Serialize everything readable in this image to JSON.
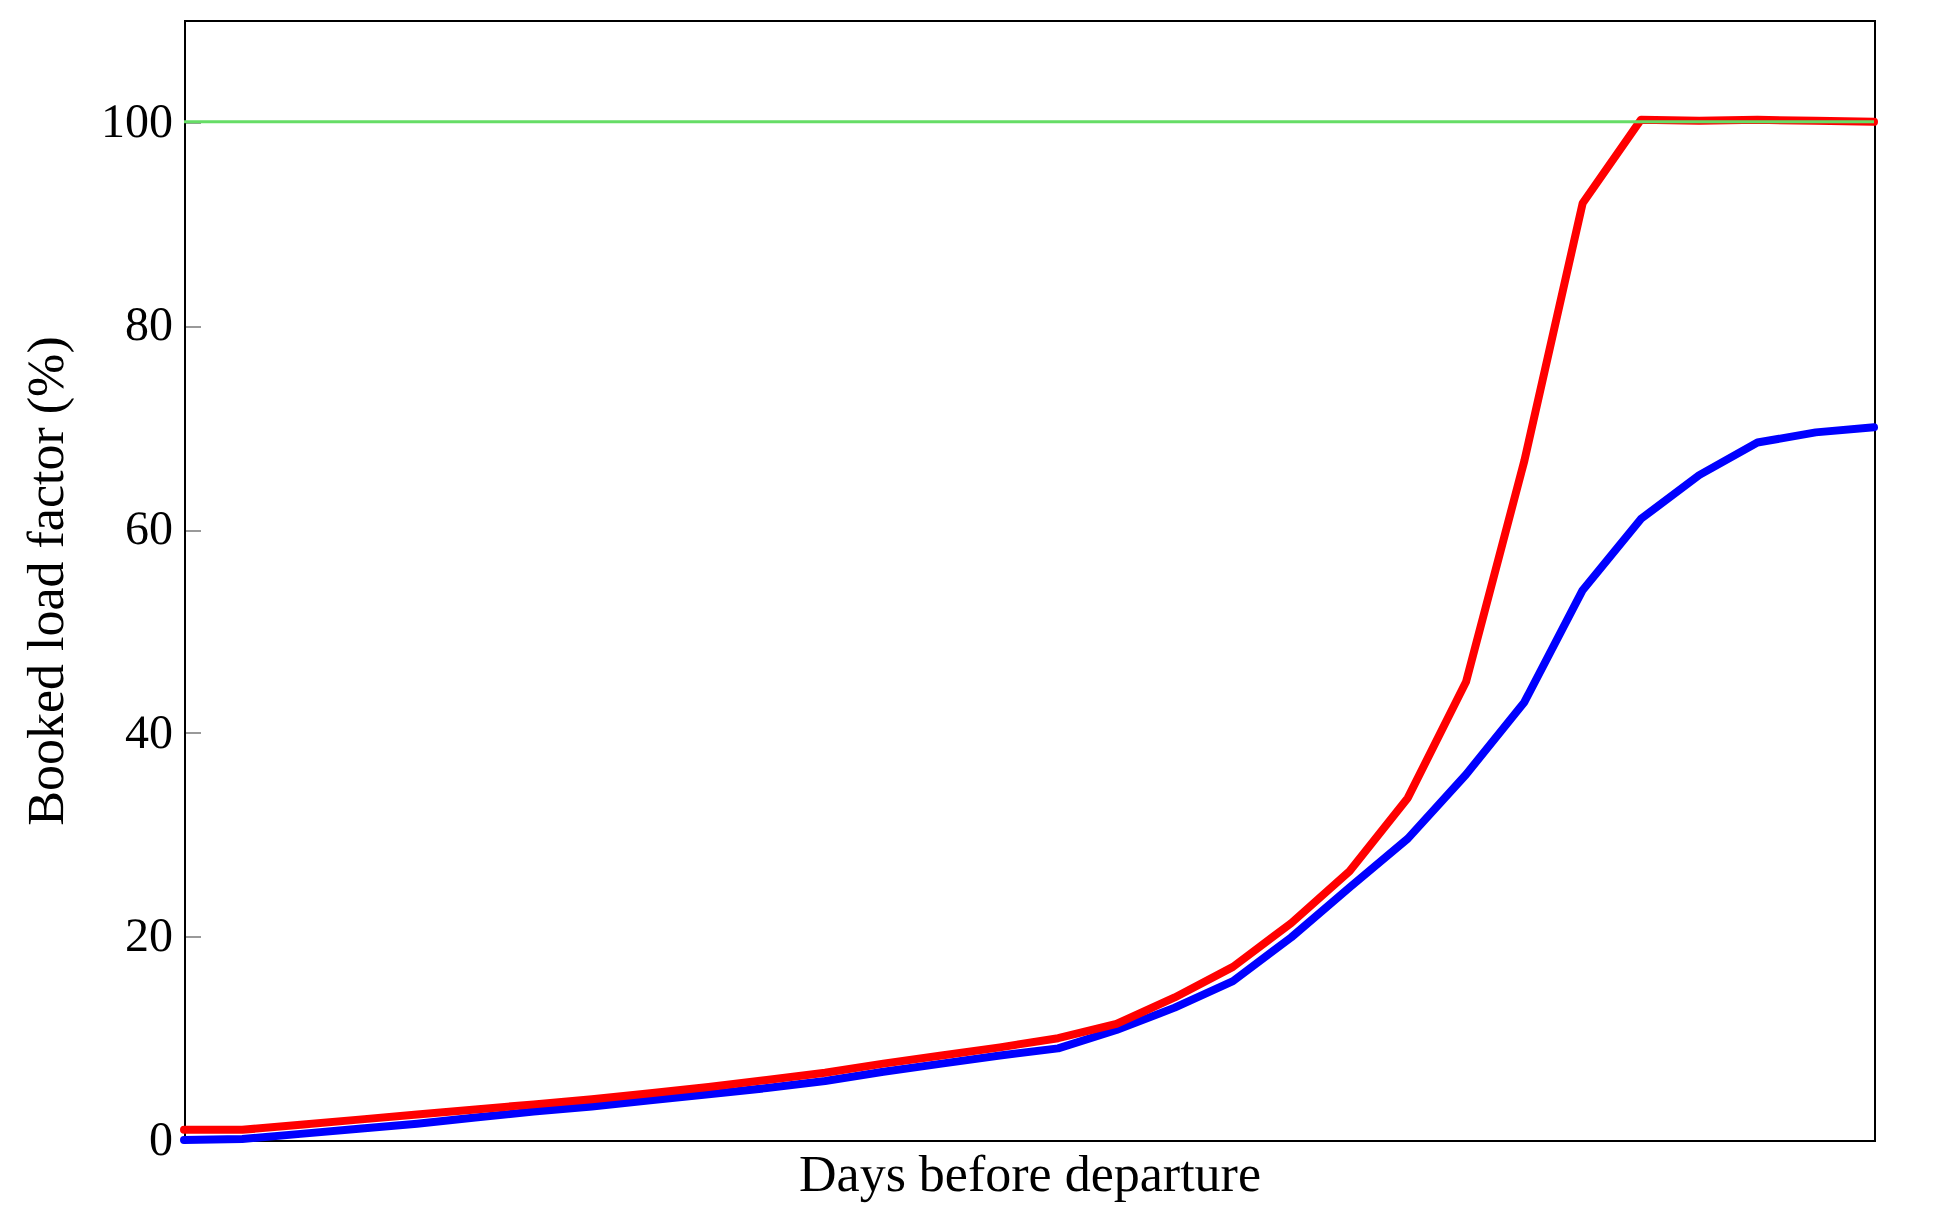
{
  "chart_data": {
    "type": "line",
    "xlabel": "Days before departure",
    "ylabel": "Booked load factor (%)",
    "categories": [
      null,
      null,
      null,
      null,
      null,
      null,
      null,
      null,
      null,
      null,
      null,
      null,
      null,
      null,
      null,
      null,
      null,
      null,
      null,
      null,
      null,
      null,
      null,
      null,
      null,
      null,
      null,
      null,
      null,
      null
    ],
    "series": [
      {
        "color": "#0000ff",
        "values": [
          0,
          0.1,
          0.6,
          1.1,
          1.6,
          2.2,
          2.8,
          3.3,
          3.9,
          4.5,
          5.1,
          5.8,
          6.7,
          7.5,
          8.3,
          9.0,
          10.8,
          13.0,
          15.6,
          19.9,
          24.8,
          29.6,
          35.9,
          43.0,
          54,
          61,
          65.3,
          68.5,
          69.5,
          70
        ]
      },
      {
        "color": "#ff0000",
        "values": [
          1.0,
          1.0,
          1.5,
          2.0,
          2.5,
          3.0,
          3.5,
          4.0,
          4.6,
          5.2,
          5.9,
          6.6,
          7.5,
          8.3,
          9.1,
          10.0,
          11.4,
          14.0,
          17.0,
          21.3,
          26.4,
          33.6,
          45.0,
          66.7,
          92,
          100.2,
          100.1,
          100.2,
          100.1,
          100
        ]
      }
    ],
    "ylim": [
      0,
      110
    ],
    "yticks": [
      0,
      20,
      40,
      60,
      80,
      100
    ],
    "grid": false,
    "marker": "none",
    "line_style": "solid",
    "ref_lines": [
      {
        "axis": "y",
        "value": 100,
        "color": "#66dd66"
      }
    ]
  }
}
